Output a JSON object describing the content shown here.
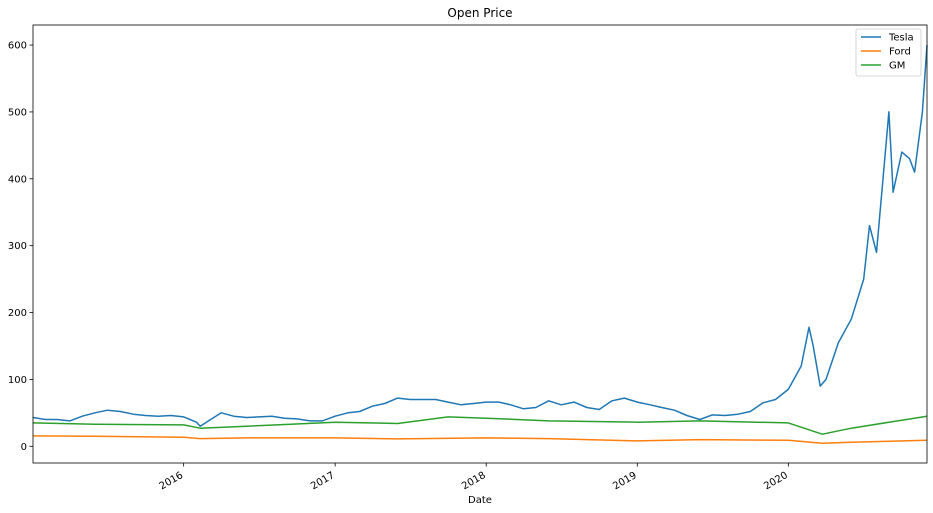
{
  "chart_data": {
    "type": "line",
    "title": "Open Price",
    "xlabel": "Date",
    "ylabel": "",
    "xlim": [
      "2015-01-02",
      "2020-12-01"
    ],
    "ylim": [
      -25,
      630
    ],
    "grid": false,
    "legend_position": "top-right",
    "yticks": [
      0,
      100,
      200,
      300,
      400,
      500,
      600
    ],
    "xticks": [
      {
        "label": "2016",
        "date": "2016-01-01"
      },
      {
        "label": "2017",
        "date": "2017-01-01"
      },
      {
        "label": "2018",
        "date": "2018-01-01"
      },
      {
        "label": "2019",
        "date": "2019-01-01"
      },
      {
        "label": "2020",
        "date": "2020-01-01"
      }
    ],
    "series": [
      {
        "name": "Tesla",
        "color": "#1f77b4",
        "points": [
          [
            "2015-01-02",
            43
          ],
          [
            "2015-02-01",
            40
          ],
          [
            "2015-03-01",
            40
          ],
          [
            "2015-04-01",
            38
          ],
          [
            "2015-05-01",
            45
          ],
          [
            "2015-06-01",
            50
          ],
          [
            "2015-07-01",
            54
          ],
          [
            "2015-08-01",
            52
          ],
          [
            "2015-09-01",
            48
          ],
          [
            "2015-10-01",
            46
          ],
          [
            "2015-11-01",
            45
          ],
          [
            "2015-12-01",
            46
          ],
          [
            "2016-01-01",
            44
          ],
          [
            "2016-02-01",
            36
          ],
          [
            "2016-02-10",
            30
          ],
          [
            "2016-03-01",
            38
          ],
          [
            "2016-04-01",
            50
          ],
          [
            "2016-05-01",
            45
          ],
          [
            "2016-06-01",
            43
          ],
          [
            "2016-07-01",
            44
          ],
          [
            "2016-08-01",
            45
          ],
          [
            "2016-09-01",
            42
          ],
          [
            "2016-10-01",
            41
          ],
          [
            "2016-11-01",
            38
          ],
          [
            "2016-12-01",
            38
          ],
          [
            "2017-01-01",
            45
          ],
          [
            "2017-02-01",
            50
          ],
          [
            "2017-03-01",
            52
          ],
          [
            "2017-04-01",
            60
          ],
          [
            "2017-05-01",
            64
          ],
          [
            "2017-06-01",
            72
          ],
          [
            "2017-07-01",
            70
          ],
          [
            "2017-08-01",
            70
          ],
          [
            "2017-09-01",
            70
          ],
          [
            "2017-10-01",
            66
          ],
          [
            "2017-11-01",
            62
          ],
          [
            "2017-12-01",
            64
          ],
          [
            "2018-01-01",
            66
          ],
          [
            "2018-02-01",
            66
          ],
          [
            "2018-03-01",
            62
          ],
          [
            "2018-04-01",
            56
          ],
          [
            "2018-05-01",
            58
          ],
          [
            "2018-06-01",
            68
          ],
          [
            "2018-07-01",
            62
          ],
          [
            "2018-08-01",
            66
          ],
          [
            "2018-09-01",
            58
          ],
          [
            "2018-10-01",
            55
          ],
          [
            "2018-11-01",
            68
          ],
          [
            "2018-12-01",
            72
          ],
          [
            "2019-01-01",
            66
          ],
          [
            "2019-02-01",
            62
          ],
          [
            "2019-03-01",
            58
          ],
          [
            "2019-04-01",
            54
          ],
          [
            "2019-05-01",
            46
          ],
          [
            "2019-06-01",
            40
          ],
          [
            "2019-07-01",
            47
          ],
          [
            "2019-08-01",
            46
          ],
          [
            "2019-09-01",
            48
          ],
          [
            "2019-10-01",
            52
          ],
          [
            "2019-11-01",
            65
          ],
          [
            "2019-12-01",
            70
          ],
          [
            "2020-01-01",
            85
          ],
          [
            "2020-02-01",
            120
          ],
          [
            "2020-02-20",
            178
          ],
          [
            "2020-03-01",
            150
          ],
          [
            "2020-03-18",
            90
          ],
          [
            "2020-04-01",
            100
          ],
          [
            "2020-05-01",
            155
          ],
          [
            "2020-06-01",
            190
          ],
          [
            "2020-07-01",
            250
          ],
          [
            "2020-07-15",
            330
          ],
          [
            "2020-08-01",
            290
          ],
          [
            "2020-08-31",
            500
          ],
          [
            "2020-09-10",
            380
          ],
          [
            "2020-10-01",
            440
          ],
          [
            "2020-10-20",
            430
          ],
          [
            "2020-11-01",
            410
          ],
          [
            "2020-11-20",
            500
          ],
          [
            "2020-12-01",
            600
          ]
        ]
      },
      {
        "name": "Ford",
        "color": "#ff7f0e",
        "points": [
          [
            "2015-01-02",
            15.5
          ],
          [
            "2015-06-01",
            15
          ],
          [
            "2016-01-01",
            13.5
          ],
          [
            "2016-02-10",
            11.5
          ],
          [
            "2016-06-01",
            12.5
          ],
          [
            "2017-01-01",
            12.5
          ],
          [
            "2017-06-01",
            11
          ],
          [
            "2018-01-01",
            12.5
          ],
          [
            "2018-06-01",
            11.5
          ],
          [
            "2019-01-01",
            8
          ],
          [
            "2019-06-01",
            10
          ],
          [
            "2020-01-01",
            9
          ],
          [
            "2020-03-23",
            4.5
          ],
          [
            "2020-06-01",
            6
          ],
          [
            "2020-12-01",
            9
          ]
        ]
      },
      {
        "name": "GM",
        "color": "#2ca02c",
        "points": [
          [
            "2015-01-02",
            35
          ],
          [
            "2015-06-01",
            33
          ],
          [
            "2016-01-01",
            32
          ],
          [
            "2016-02-10",
            27
          ],
          [
            "2016-06-01",
            30
          ],
          [
            "2017-01-01",
            36
          ],
          [
            "2017-06-01",
            34
          ],
          [
            "2017-10-01",
            44
          ],
          [
            "2018-01-01",
            42
          ],
          [
            "2018-06-01",
            38
          ],
          [
            "2019-01-01",
            36
          ],
          [
            "2019-06-01",
            38
          ],
          [
            "2020-01-01",
            35
          ],
          [
            "2020-03-23",
            18
          ],
          [
            "2020-06-01",
            27
          ],
          [
            "2020-12-01",
            45
          ]
        ]
      }
    ]
  }
}
